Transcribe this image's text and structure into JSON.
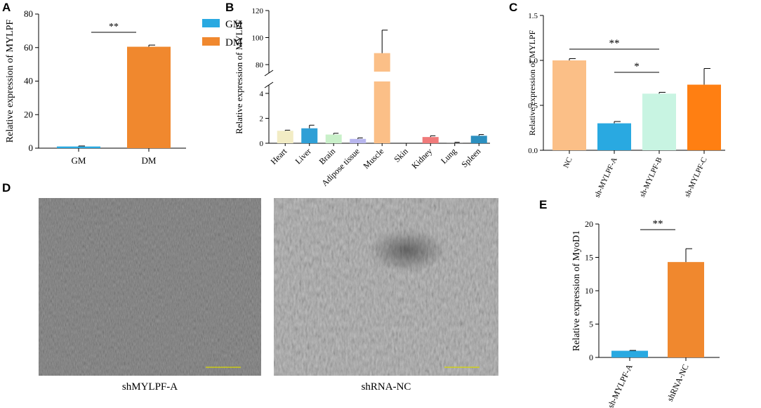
{
  "panels": {
    "A": "A",
    "B": "B",
    "C": "C",
    "D": "D",
    "E": "E"
  },
  "microscopy": [
    {
      "caption": "shMYLPF-A"
    },
    {
      "caption": "shRNA-NC"
    }
  ],
  "chart_data": [
    {
      "panel": "A",
      "type": "bar",
      "categories": [
        "GM",
        "DM"
      ],
      "values": [
        1.0,
        60.5
      ],
      "errors": [
        0.3,
        1.0
      ],
      "colors": [
        "#29a9e1",
        "#f0882e"
      ],
      "ylabel": "Relative expression of MYLPF",
      "ylim": [
        0,
        80
      ],
      "yticks": [
        0,
        20,
        40,
        60,
        80
      ],
      "legend": [
        {
          "name": "GM",
          "color": "#29a9e1"
        },
        {
          "name": "DM",
          "color": "#f0882e"
        }
      ],
      "legend_position": "top-right",
      "significance": [
        {
          "from": 0,
          "to": 1,
          "label": "**"
        }
      ]
    },
    {
      "panel": "B",
      "type": "bar",
      "categories": [
        "Heart",
        "Liver",
        "Brain",
        "Adipose tissue",
        "Muscle",
        "Skin",
        "Kidney",
        "Lung",
        "Spleen"
      ],
      "values": [
        1.0,
        1.2,
        0.7,
        0.35,
        88.5,
        0.0,
        0.5,
        0.05,
        0.6
      ],
      "errors": [
        0.05,
        0.25,
        0.1,
        0.08,
        17.0,
        0.0,
        0.1,
        0.03,
        0.1
      ],
      "colors": [
        "#f2ecc4",
        "#2f9fd6",
        "#c9f0c9",
        "#b8b6ee",
        "#fbbf87",
        "#dddddd",
        "#f07a7a",
        "#888888",
        "#2c8fbf"
      ],
      "ylabel": "Relative expression of MYLPF",
      "broken_axis": true,
      "ylim_lower": [
        0,
        4
      ],
      "ylim_upper": [
        80,
        120
      ],
      "yticks_lower": [
        0,
        2,
        4
      ],
      "yticks_upper": [
        80,
        100,
        120
      ]
    },
    {
      "panel": "C",
      "type": "bar",
      "categories": [
        "NC",
        "sh-MYLPF-A",
        "sh-MYLPF-B",
        "sh-MYLPF-C"
      ],
      "values": [
        1.0,
        0.3,
        0.63,
        0.73
      ],
      "errors": [
        0.02,
        0.02,
        0.015,
        0.18
      ],
      "colors": [
        "#fbbf87",
        "#29a9e1",
        "#c8f4e2",
        "#ff7f12"
      ],
      "ylabel": "Relative expression of MYLPF",
      "ylim": [
        0,
        1.5
      ],
      "yticks": [
        0.0,
        0.5,
        1.0,
        1.5
      ],
      "significance": [
        {
          "from": 0,
          "to": 2,
          "label": "**"
        },
        {
          "from": 1,
          "to": 2,
          "label": "*"
        }
      ]
    },
    {
      "panel": "E",
      "type": "bar",
      "categories": [
        "sh-MYLPF-A",
        "shRNA-NC"
      ],
      "values": [
        1.0,
        14.3
      ],
      "errors": [
        0.05,
        2.0
      ],
      "colors": [
        "#29a9e1",
        "#f0882e"
      ],
      "ylabel": "Relative expression of MyoD1",
      "ylim": [
        0,
        20
      ],
      "yticks": [
        0,
        5,
        10,
        15,
        20
      ],
      "significance": [
        {
          "from": 0,
          "to": 1,
          "label": "**"
        }
      ]
    }
  ]
}
